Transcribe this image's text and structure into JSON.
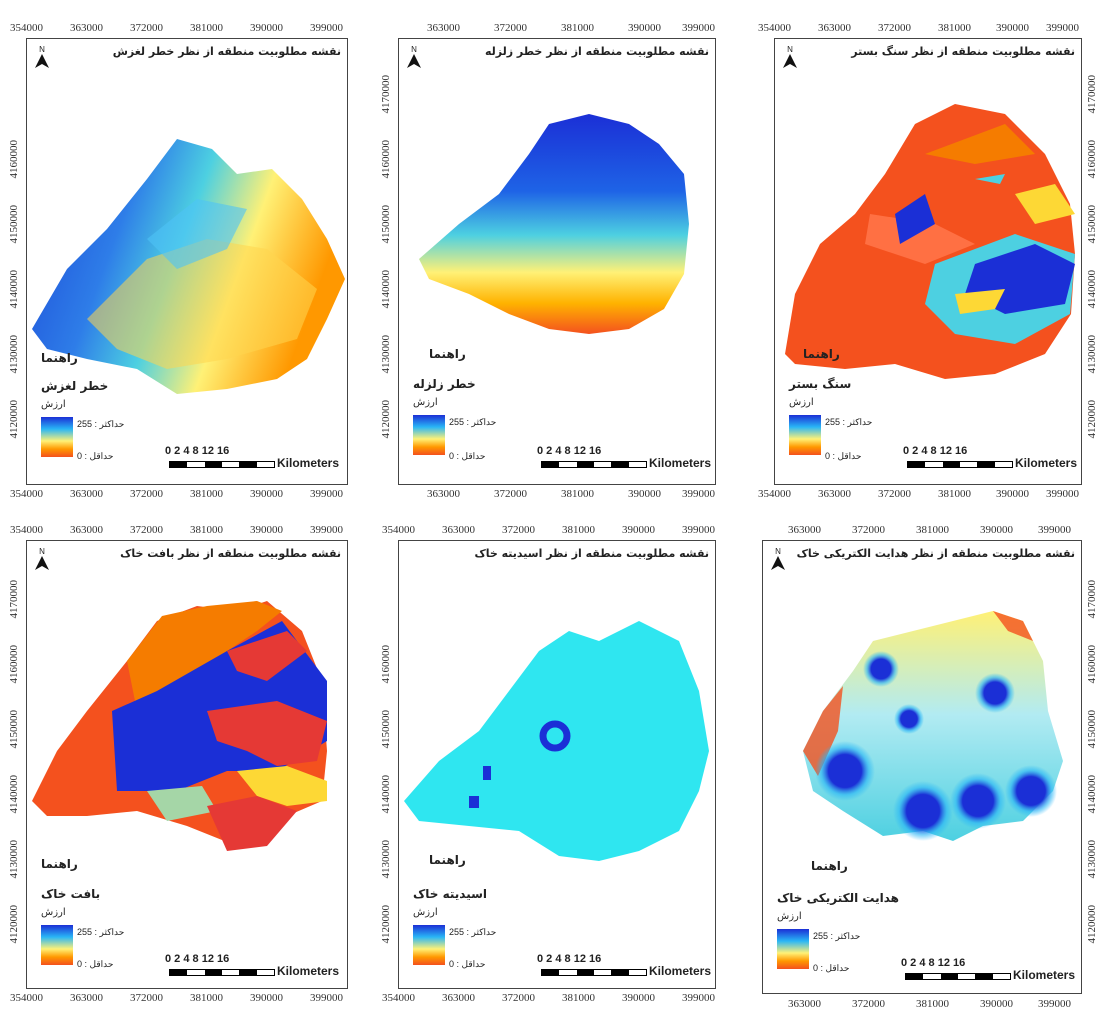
{
  "common": {
    "north_label": "N",
    "guide_label": "راهنما",
    "value_label": "ارزش",
    "max_label": "حداکثر : 255",
    "min_label": "حداقل : 0",
    "scale_numbers": "0 2 4     8     12    16",
    "scale_unit": "Kilometers",
    "x_ticks": [
      "354000",
      "363000",
      "372000",
      "381000",
      "390000",
      "399000"
    ],
    "y_ticks": [
      "4170000",
      "4160000",
      "4150000",
      "4140000",
      "4130000",
      "4120000"
    ],
    "ramp_colors": [
      "#1b2fd6",
      "#29b6f6",
      "#fff176",
      "#ff9800",
      "#f4511e"
    ]
  },
  "panels": [
    {
      "title": "نقشه مطلوبیت منطقه از نظر خطر لغزش",
      "layer": "خطر لغزش"
    },
    {
      "title": "نقشه مطلوبیت منطقه از نظر خطر زلزله",
      "layer": "خطر زلزله"
    },
    {
      "title": "نقشه مطلوبیت منطقه از نظر سنگ بستر",
      "layer": "سنگ بستر"
    },
    {
      "title": "نقشه مطلوبیت منطقه از نظر بافت خاک",
      "layer": "بافت خاک"
    },
    {
      "title": "نقشه مطلوبیت منطقه از نظر اسیدیته خاک",
      "layer": "اسیدیته خاک"
    },
    {
      "title": "نقشه مطلوبیت منطقه از نظر هدایت الکتریکی خاک",
      "layer": "هدایت الکتریکی خاک"
    }
  ]
}
